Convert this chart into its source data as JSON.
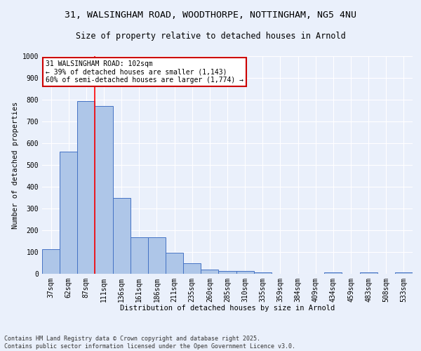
{
  "title_line1": "31, WALSINGHAM ROAD, WOODTHORPE, NOTTINGHAM, NG5 4NU",
  "title_line2": "Size of property relative to detached houses in Arnold",
  "xlabel": "Distribution of detached houses by size in Arnold",
  "ylabel": "Number of detached properties",
  "categories": [
    "37sqm",
    "62sqm",
    "87sqm",
    "111sqm",
    "136sqm",
    "161sqm",
    "186sqm",
    "211sqm",
    "235sqm",
    "260sqm",
    "285sqm",
    "310sqm",
    "335sqm",
    "359sqm",
    "384sqm",
    "409sqm",
    "434sqm",
    "459sqm",
    "483sqm",
    "508sqm",
    "533sqm"
  ],
  "values": [
    112,
    560,
    795,
    770,
    350,
    168,
    168,
    98,
    50,
    18,
    13,
    13,
    8,
    0,
    0,
    0,
    5,
    0,
    5,
    0,
    5
  ],
  "bar_color": "#aec6e8",
  "bar_edge_color": "#4472c4",
  "background_color": "#eaf0fb",
  "grid_color": "#ffffff",
  "annotation_line1": "31 WALSINGHAM ROAD: 102sqm",
  "annotation_line2": "← 39% of detached houses are smaller (1,143)",
  "annotation_line3": "60% of semi-detached houses are larger (1,774) →",
  "annotation_box_color": "#ffffff",
  "annotation_box_edge_color": "#cc0000",
  "footer_line1": "Contains HM Land Registry data © Crown copyright and database right 2025.",
  "footer_line2": "Contains public sector information licensed under the Open Government Licence v3.0.",
  "ylim": [
    0,
    1000
  ],
  "yticks": [
    0,
    100,
    200,
    300,
    400,
    500,
    600,
    700,
    800,
    900,
    1000
  ],
  "title_fontsize": 9.5,
  "subtitle_fontsize": 8.5,
  "axis_fontsize": 7.5,
  "tick_fontsize": 7,
  "annot_fontsize": 7,
  "footer_fontsize": 6
}
